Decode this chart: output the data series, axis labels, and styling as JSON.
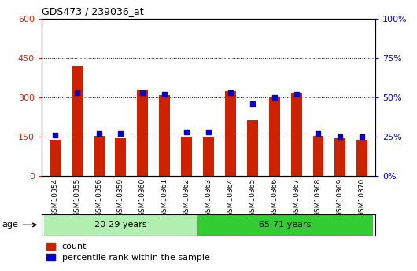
{
  "title": "GDS473 / 239036_at",
  "samples": [
    "GSM10354",
    "GSM10355",
    "GSM10356",
    "GSM10359",
    "GSM10360",
    "GSM10361",
    "GSM10362",
    "GSM10363",
    "GSM10364",
    "GSM10365",
    "GSM10366",
    "GSM10367",
    "GSM10368",
    "GSM10369",
    "GSM10370"
  ],
  "counts": [
    140,
    420,
    155,
    145,
    330,
    310,
    150,
    150,
    325,
    215,
    300,
    320,
    155,
    145,
    140
  ],
  "percentiles": [
    26,
    53,
    27,
    27,
    53,
    52,
    28,
    28,
    53,
    46,
    50,
    52,
    27,
    25,
    25
  ],
  "groups": [
    {
      "label": "20-29 years",
      "start": 0,
      "end": 7,
      "color": "#b2f0b2"
    },
    {
      "label": "65-71 years",
      "start": 7,
      "end": 15,
      "color": "#33cc33"
    }
  ],
  "age_label": "age",
  "ylim_left": [
    0,
    600
  ],
  "ylim_right": [
    0,
    100
  ],
  "yticks_left": [
    0,
    150,
    300,
    450,
    600
  ],
  "yticks_right": [
    0,
    25,
    50,
    75,
    100
  ],
  "bar_color": "#cc2200",
  "dot_color": "#0000cc",
  "bg_color": "#ffffff",
  "legend_items": [
    "count",
    "percentile rank within the sample"
  ]
}
